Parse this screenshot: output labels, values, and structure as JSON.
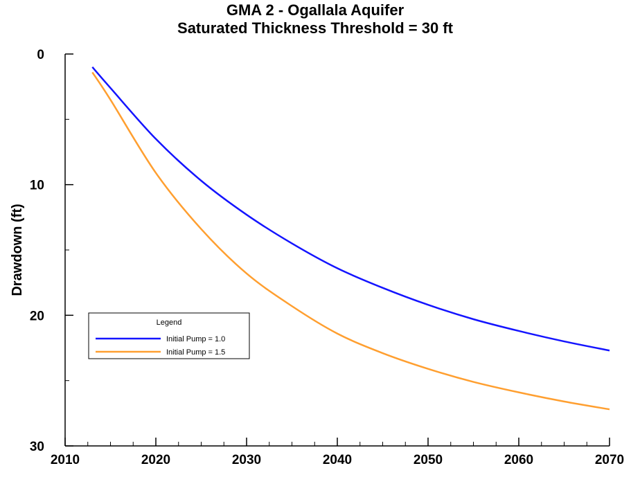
{
  "chart_data": {
    "type": "line",
    "title": "GMA 2 - Ogallala Aquifer",
    "subtitle": "Saturated Thickness Threshold = 30 ft",
    "xlabel": "",
    "ylabel": "Drawdown (ft)",
    "xlim": [
      2010,
      2070
    ],
    "ylim": [
      0,
      30
    ],
    "y_inverted": true,
    "x_major_ticks": [
      2010,
      2020,
      2030,
      2040,
      2050,
      2060,
      2070
    ],
    "x_minor_step": 2.5,
    "y_major_ticks": [
      0,
      10,
      20,
      30
    ],
    "y_minor_step": 5,
    "grid": false,
    "legend": {
      "title": "Legend",
      "placement": "middle-left"
    },
    "series": [
      {
        "name": "Initial Pump = 1.0",
        "color": "#1414ff",
        "x": [
          2013,
          2015,
          2020,
          2025,
          2030,
          2035,
          2040,
          2045,
          2050,
          2055,
          2060,
          2065,
          2070
        ],
        "y": [
          1.0,
          2.6,
          6.5,
          9.7,
          12.3,
          14.5,
          16.4,
          17.9,
          19.2,
          20.3,
          21.2,
          22.0,
          22.7
        ]
      },
      {
        "name": "Initial Pump = 1.5",
        "color": "#ff9f30",
        "x": [
          2013,
          2015,
          2020,
          2025,
          2030,
          2035,
          2040,
          2045,
          2050,
          2055,
          2060,
          2065,
          2070
        ],
        "y": [
          1.4,
          3.5,
          9.1,
          13.4,
          16.8,
          19.3,
          21.4,
          22.9,
          24.1,
          25.1,
          25.9,
          26.6,
          27.2
        ]
      }
    ]
  }
}
